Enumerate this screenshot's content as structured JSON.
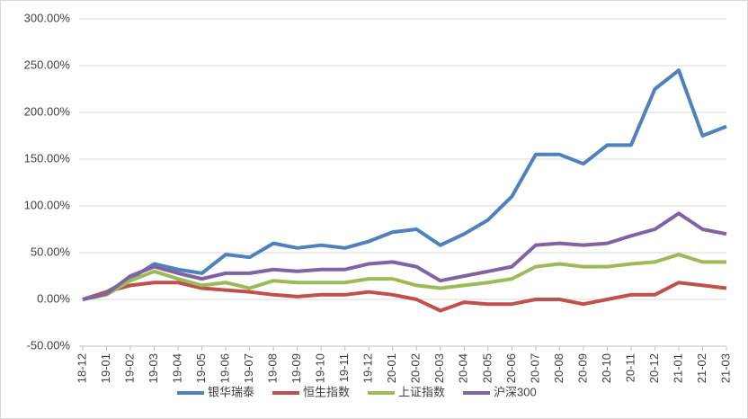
{
  "chart_data": {
    "type": "line",
    "categories": [
      "18-12",
      "19-01",
      "19-02",
      "19-03",
      "19-04",
      "19-05",
      "19-06",
      "19-07",
      "19-08",
      "19-09",
      "19-10",
      "19-11",
      "19-12",
      "20-01",
      "20-02",
      "20-03",
      "20-04",
      "20-05",
      "20-06",
      "20-07",
      "20-08",
      "20-09",
      "20-10",
      "20-11",
      "20-12",
      "21-01",
      "21-02",
      "21-03"
    ],
    "series": [
      {
        "name": "银华瑞泰",
        "color": "#4f81bd",
        "values": [
          0,
          8,
          22,
          38,
          32,
          28,
          48,
          45,
          60,
          55,
          58,
          55,
          62,
          72,
          75,
          58,
          70,
          85,
          110,
          155,
          155,
          145,
          165,
          165,
          225,
          245,
          175,
          185
        ]
      },
      {
        "name": "恒生指数",
        "color": "#c0504d",
        "values": [
          0,
          8,
          15,
          18,
          18,
          12,
          10,
          8,
          5,
          3,
          5,
          5,
          8,
          5,
          0,
          -12,
          -3,
          -5,
          -5,
          0,
          0,
          -5,
          0,
          5,
          5,
          18,
          15,
          12
        ]
      },
      {
        "name": "上证指数",
        "color": "#9bbb59",
        "values": [
          0,
          5,
          20,
          30,
          22,
          15,
          18,
          12,
          20,
          18,
          18,
          18,
          22,
          22,
          15,
          12,
          15,
          18,
          22,
          35,
          38,
          35,
          35,
          38,
          40,
          48,
          40,
          40
        ]
      },
      {
        "name": "沪深300",
        "color": "#8064a2",
        "values": [
          0,
          6,
          25,
          35,
          28,
          22,
          28,
          28,
          32,
          30,
          32,
          32,
          38,
          40,
          35,
          20,
          25,
          30,
          35,
          58,
          60,
          58,
          60,
          68,
          75,
          92,
          75,
          70
        ]
      }
    ],
    "ylim": [
      -50,
      300
    ],
    "yticks": [
      {
        "value": -50,
        "label": "-50.00%"
      },
      {
        "value": 0,
        "label": "0.00%"
      },
      {
        "value": 50,
        "label": "50.00%"
      },
      {
        "value": 100,
        "label": "100.00%"
      },
      {
        "value": 150,
        "label": "150.00%"
      },
      {
        "value": 200,
        "label": "200.00%"
      },
      {
        "value": 250,
        "label": "250.00%"
      },
      {
        "value": 300,
        "label": "300.00%"
      }
    ],
    "grid": true,
    "legend": "bottom"
  }
}
